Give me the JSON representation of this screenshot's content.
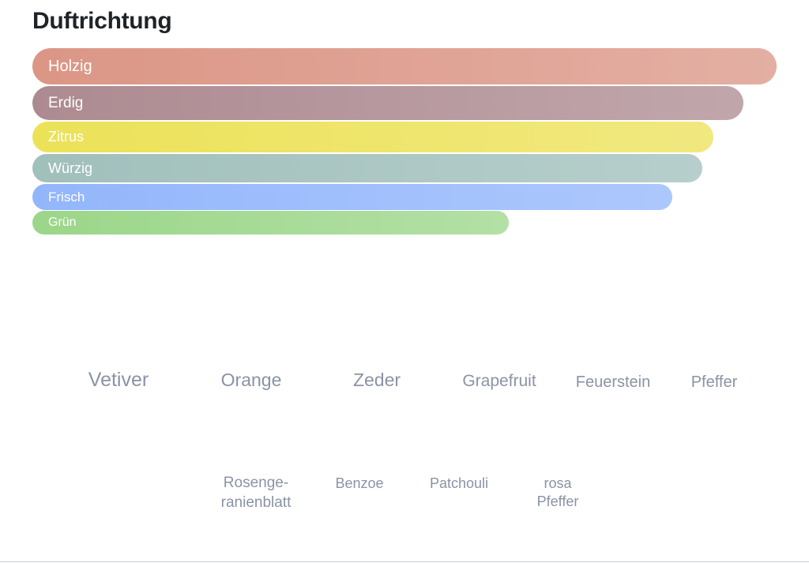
{
  "header": {
    "title": "Duftrichtung"
  },
  "chart_data": {
    "type": "bar",
    "orientation": "horizontal",
    "title": "Duftrichtung",
    "xlabel": "",
    "ylabel": "",
    "grid": false,
    "axes_visible": false,
    "xlim": [
      0,
      100
    ],
    "categories": [
      "Holzig",
      "Erdig",
      "Zitrus",
      "Würzig",
      "Frisch",
      "Grün"
    ],
    "values": [
      100,
      95.5,
      91.5,
      90,
      86,
      64
    ],
    "colors": [
      "#d9907f",
      "#a8848b",
      "#ebe04f",
      "#9bbcb8",
      "#8db2fb",
      "#96d483"
    ]
  },
  "notes": {
    "row1": [
      "Vetiver",
      "Orange",
      "Zeder",
      "Grapefruit",
      "Feuerstein",
      "Pfeffer"
    ],
    "row2": [
      "Rosenge-\nranienblatt",
      "Benzoe",
      "Patchouli",
      "rosa\nPfeffer"
    ]
  }
}
